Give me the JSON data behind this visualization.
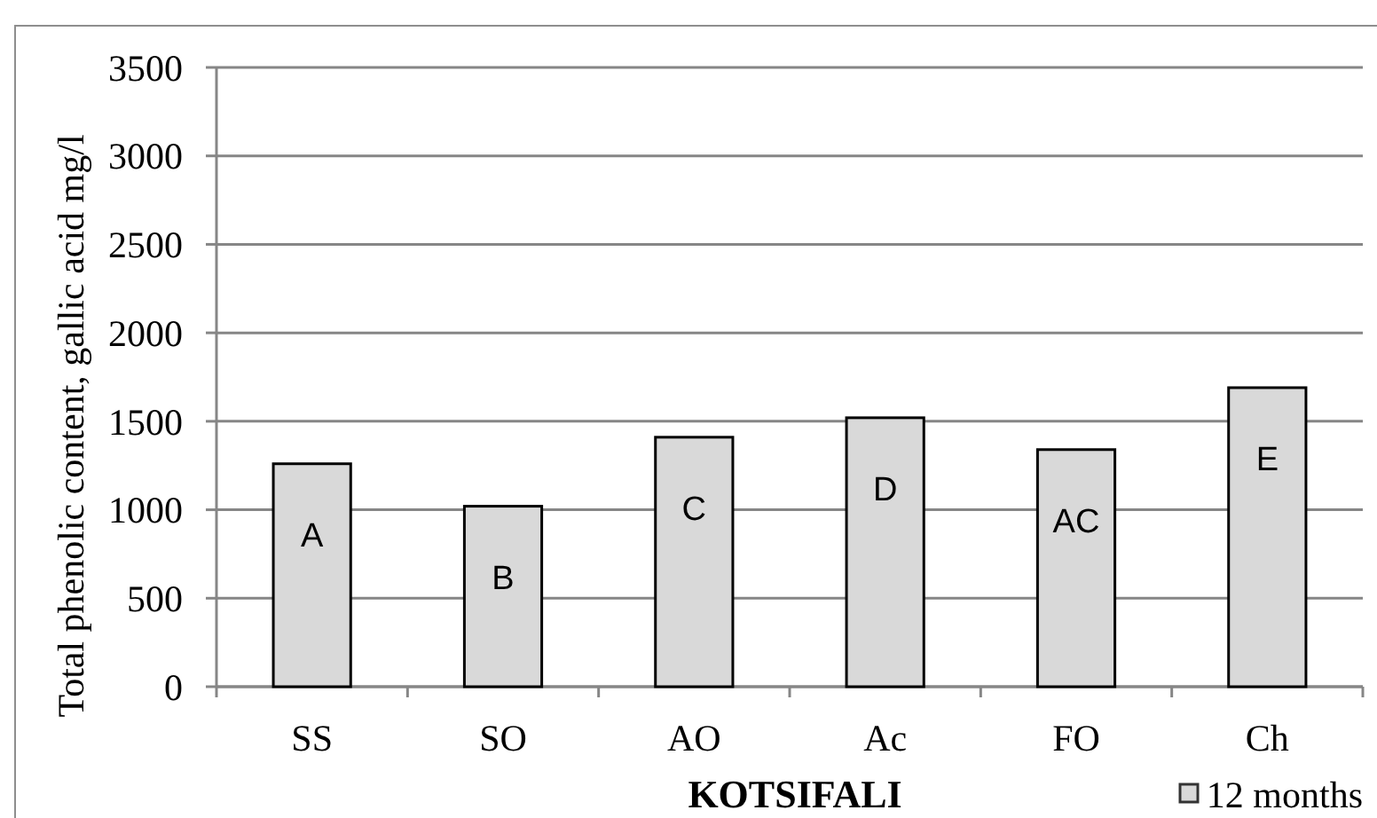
{
  "chart_data": {
    "type": "bar",
    "categories": [
      "SS",
      "SO",
      "AO",
      "Ac",
      "FO",
      "Ch"
    ],
    "series": [
      {
        "name": "12 months",
        "color": "#d9d9d9",
        "values": [
          1260,
          1020,
          1410,
          1520,
          1340,
          1690
        ]
      }
    ],
    "xlabel": "KOTSIFALI",
    "ylabel": "Total phenolic content, gallic acid mg/l",
    "ylim": [
      0,
      3500
    ],
    "yticks": [
      0,
      500,
      1000,
      1500,
      2000,
      2500,
      3000,
      3500
    ],
    "grid": "y",
    "legend": "bottom right",
    "annotations": [
      {
        "text": "A",
        "x": "SS",
        "y": 1260
      },
      {
        "text": "B",
        "x": "SO",
        "y": 1020
      },
      {
        "text": "C",
        "x": "AO",
        "y": 1410
      },
      {
        "text": "D",
        "x": "Ac",
        "y": 1520
      },
      {
        "text": "AC",
        "x": "FO",
        "y": 1340
      },
      {
        "text": "E",
        "x": "Ch",
        "y": 1690
      }
    ]
  }
}
